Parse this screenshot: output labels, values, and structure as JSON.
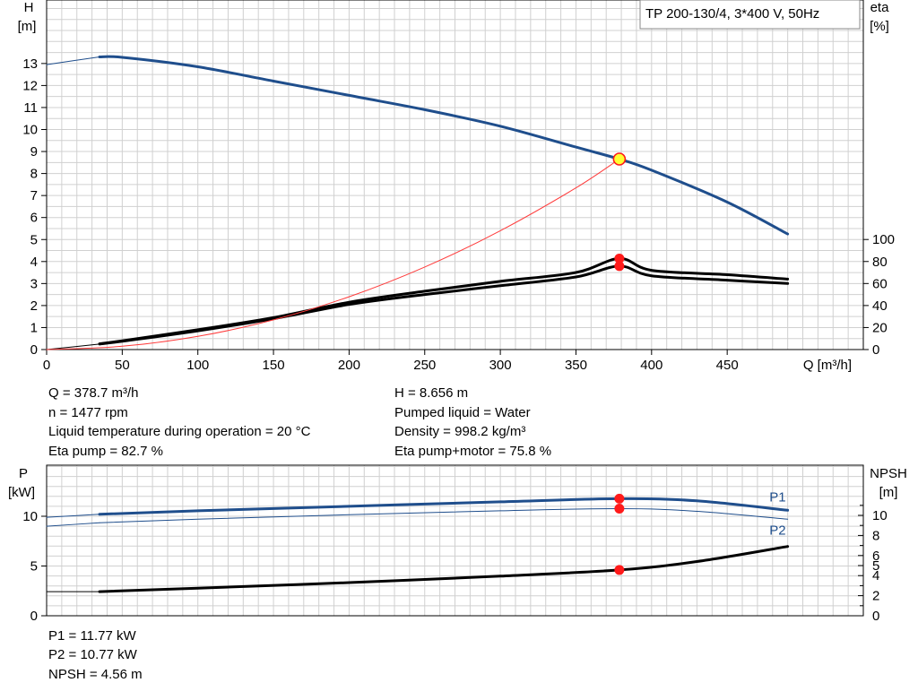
{
  "colors": {
    "blue": "#1f4e8c",
    "black": "#000000",
    "red_marker": "#ff1a1a",
    "yellow_marker": "#ffff33",
    "efficiency_line": "#ff3b3b",
    "grid": "#d0d0d0"
  },
  "chart_data": [
    {
      "type": "line",
      "title": "TP 200-130/4, 3*400 V, 50Hz",
      "xlabel": "Q [m³/h]",
      "ylabel_left": [
        "H",
        "[m]"
      ],
      "ylabel_right": [
        "eta",
        "[%]"
      ],
      "xlim": [
        0,
        540
      ],
      "ylim_left": [
        0,
        13.8
      ],
      "ylim_right": [
        0,
        100
      ],
      "xticks": [
        "0",
        "50",
        "100",
        "150",
        "200",
        "250",
        "300",
        "350",
        "400",
        "450"
      ],
      "yticks_left": [
        "0",
        "1",
        "2",
        "3",
        "4",
        "5",
        "6",
        "7",
        "8",
        "9",
        "10",
        "11",
        "12",
        "13"
      ],
      "yticks_right": [
        "0",
        "20",
        "40",
        "60",
        "80",
        "100"
      ],
      "grid": true,
      "series": [
        {
          "id": "H",
          "axis": "left",
          "color": "blue",
          "x": [
            35,
            50,
            100,
            150,
            200,
            250,
            300,
            350,
            378.7,
            400,
            450,
            490
          ],
          "y": [
            13.3,
            13.28,
            12.85,
            12.2,
            11.55,
            10.9,
            10.15,
            9.2,
            8.656,
            8.15,
            6.7,
            5.25
          ]
        },
        {
          "id": "H-ext",
          "axis": "left",
          "color": "blue",
          "thin": true,
          "x": [
            0,
            35
          ],
          "y": [
            12.95,
            13.3
          ]
        },
        {
          "id": "eta-pump",
          "axis": "right",
          "color": "black",
          "x": [
            35,
            50,
            100,
            150,
            200,
            250,
            300,
            350,
            378.7,
            400,
            450,
            490
          ],
          "y": [
            5.2,
            8,
            18,
            29,
            43,
            53,
            62,
            70,
            82.7,
            72,
            68,
            64
          ]
        },
        {
          "id": "eta-pump-motor",
          "axis": "right",
          "color": "black",
          "x": [
            35,
            50,
            100,
            150,
            200,
            250,
            300,
            350,
            378.7,
            400,
            450,
            490
          ],
          "y": [
            5,
            7.5,
            17,
            28,
            41,
            50,
            58,
            66,
            75.8,
            67,
            63,
            60
          ]
        },
        {
          "id": "eta-ext",
          "axis": "right",
          "color": "black",
          "thin": true,
          "x": [
            0,
            35
          ],
          "y": [
            0,
            5
          ]
        },
        {
          "id": "system",
          "axis": "left",
          "color": "efficiency_line",
          "thin": true,
          "x": [
            0,
            50,
            100,
            150,
            200,
            250,
            300,
            350,
            378.7
          ],
          "y": [
            0,
            0.15,
            0.6,
            1.35,
            2.4,
            3.75,
            5.4,
            7.35,
            8.656
          ]
        }
      ],
      "operating_point": {
        "x": 378.7,
        "H": 8.656,
        "eta_pump": 82.7,
        "eta_pump_motor": 75.8
      }
    },
    {
      "type": "line",
      "ylabel_left": [
        "P",
        "[kW]"
      ],
      "ylabel_right": [
        "NPSH",
        "[m]"
      ],
      "xlim": [
        0,
        540
      ],
      "ylim_left": [
        0,
        13.5
      ],
      "ylim_right": [
        0,
        12
      ],
      "yticks_left": [
        "0",
        "5",
        "10"
      ],
      "yticks_right": [
        "0",
        "2",
        "4",
        "5",
        "6",
        "8",
        "10"
      ],
      "grid": true,
      "series": [
        {
          "id": "P1",
          "name": "P1",
          "axis": "left",
          "color": "blue",
          "x": [
            35,
            100,
            200,
            300,
            378.7,
            430,
            490
          ],
          "y": [
            10.2,
            10.55,
            11.0,
            11.45,
            11.77,
            11.55,
            10.6
          ]
        },
        {
          "id": "P2",
          "name": "P2",
          "axis": "left",
          "color": "blue",
          "thin": true,
          "x": [
            35,
            100,
            200,
            300,
            378.7,
            430,
            490
          ],
          "y": [
            9.35,
            9.7,
            10.15,
            10.55,
            10.77,
            10.5,
            9.7
          ]
        },
        {
          "id": "P1-ext",
          "axis": "left",
          "color": "blue",
          "thin": true,
          "x": [
            0,
            35
          ],
          "y": [
            9.9,
            10.2
          ]
        },
        {
          "id": "P2-ext",
          "axis": "left",
          "color": "blue",
          "thin": true,
          "x": [
            0,
            35
          ],
          "y": [
            9.0,
            9.35
          ]
        },
        {
          "id": "NPSH",
          "axis": "right",
          "color": "black",
          "x": [
            35,
            100,
            200,
            300,
            378.7,
            430,
            490
          ],
          "y": [
            2.4,
            2.75,
            3.3,
            3.95,
            4.56,
            5.4,
            6.9
          ]
        },
        {
          "id": "NPSH-ext",
          "axis": "right",
          "color": "black",
          "thin": true,
          "x": [
            0,
            35
          ],
          "y": [
            2.4,
            2.4
          ]
        }
      ],
      "operating_point": {
        "x": 378.7,
        "P1": 11.77,
        "P2": 10.77,
        "NPSH": 4.56
      }
    }
  ],
  "info_left": [
    "Q = 378.7 m³/h",
    "n = 1477 rpm",
    "Liquid temperature during operation = 20 °C",
    "Eta pump = 82.7 %"
  ],
  "info_right": [
    "H = 8.656 m",
    "Pumped liquid = Water",
    "Density = 998.2 kg/m³",
    "Eta pump+motor = 75.8 %"
  ],
  "info_bottom": [
    "P1 = 11.77 kW",
    "P2 = 10.77 kW",
    "NPSH = 4.56 m"
  ]
}
